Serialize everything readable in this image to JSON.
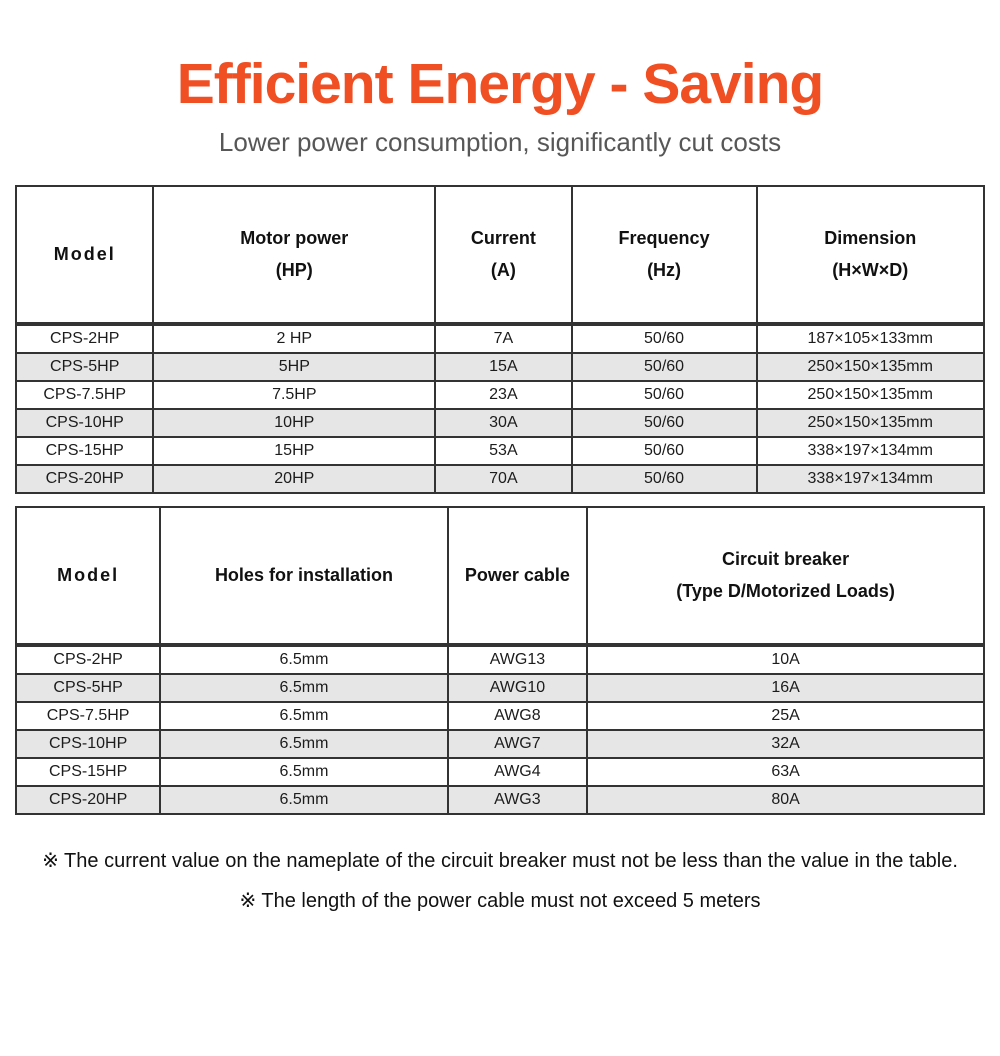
{
  "header": {
    "title": "Efficient Energy - Saving",
    "subtitle": "Lower power consumption, significantly cut costs"
  },
  "spec_table": {
    "columns": [
      "Model",
      "Motor power\n(HP)",
      "Current\n(A)",
      "Frequency\n(Hz)",
      "Dimension\n(H×W×D)"
    ],
    "rows": [
      [
        "CPS-2HP",
        "2 HP",
        "7A",
        "50/60",
        "187×105×133mm"
      ],
      [
        "CPS-5HP",
        "5HP",
        "15A",
        "50/60",
        "250×150×135mm"
      ],
      [
        "CPS-7.5HP",
        "7.5HP",
        "23A",
        "50/60",
        "250×150×135mm"
      ],
      [
        "CPS-10HP",
        "10HP",
        "30A",
        "50/60",
        "250×150×135mm"
      ],
      [
        "CPS-15HP",
        "15HP",
        "53A",
        "50/60",
        "338×197×134mm"
      ],
      [
        "CPS-20HP",
        "20HP",
        "70A",
        "50/60",
        "338×197×134mm"
      ]
    ]
  },
  "install_table": {
    "columns": [
      "Model",
      "Holes for installation",
      "Power cable",
      "Circuit breaker\n(Type D/Motorized Loads)"
    ],
    "rows": [
      [
        "CPS-2HP",
        "6.5mm",
        "AWG13",
        "10A"
      ],
      [
        "CPS-5HP",
        "6.5mm",
        "AWG10",
        "16A"
      ],
      [
        "CPS-7.5HP",
        "6.5mm",
        "AWG8",
        "25A"
      ],
      [
        "CPS-10HP",
        "6.5mm",
        "AWG7",
        "32A"
      ],
      [
        "CPS-15HP",
        "6.5mm",
        "AWG4",
        "63A"
      ],
      [
        "CPS-20HP",
        "6.5mm",
        "AWG3",
        "80A"
      ]
    ]
  },
  "footnotes": [
    "※ The current value on the nameplate of the circuit breaker must not be less than the value in the table.",
    "※ The length of the power cable must not exceed 5 meters"
  ],
  "colors": {
    "accent": "#F04E23",
    "subtitle_text": "#575757",
    "table_border": "#333333",
    "row_stripe": "#E6E6E6"
  }
}
